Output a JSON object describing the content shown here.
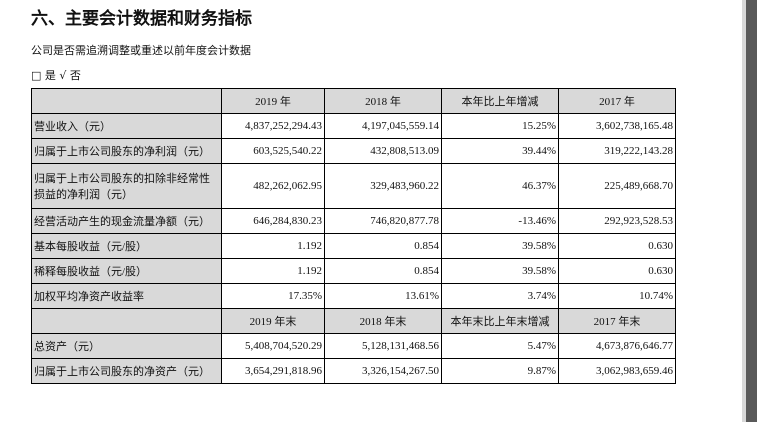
{
  "title": "六、主要会计数据和财务指标",
  "question": "公司是否需追溯调整或重述以前年度会计数据",
  "options": "□ 是 √ 否",
  "header1": [
    "",
    "2019 年",
    "2018 年",
    "本年比上年增减",
    "2017 年"
  ],
  "rows1": [
    [
      "营业收入（元）",
      "4,837,252,294.43",
      "4,197,045,559.14",
      "15.25%",
      "3,602,738,165.48"
    ],
    [
      "归属于上市公司股东的净利润（元）",
      "603,525,540.22",
      "432,808,513.09",
      "39.44%",
      "319,222,143.28"
    ],
    [
      "归属于上市公司股东的扣除非经常性损益的净利润（元）",
      "482,262,062.95",
      "329,483,960.22",
      "46.37%",
      "225,489,668.70"
    ],
    [
      "经营活动产生的现金流量净额（元）",
      "646,284,830.23",
      "746,820,877.78",
      "-13.46%",
      "292,923,528.53"
    ],
    [
      "基本每股收益（元/股）",
      "1.192",
      "0.854",
      "39.58%",
      "0.630"
    ],
    [
      "稀释每股收益（元/股）",
      "1.192",
      "0.854",
      "39.58%",
      "0.630"
    ],
    [
      "加权平均净资产收益率",
      "17.35%",
      "13.61%",
      "3.74%",
      "10.74%"
    ]
  ],
  "header2": [
    "",
    "2019 年末",
    "2018 年末",
    "本年末比上年末增减",
    "2017 年末"
  ],
  "rows2": [
    [
      "总资产（元）",
      "5,408,704,520.29",
      "5,128,131,468.56",
      "5.47%",
      "4,673,876,646.77"
    ],
    [
      "归属于上市公司股东的净资产（元）",
      "3,654,291,818.96",
      "3,326,154,267.50",
      "9.87%",
      "3,062,983,659.46"
    ]
  ]
}
